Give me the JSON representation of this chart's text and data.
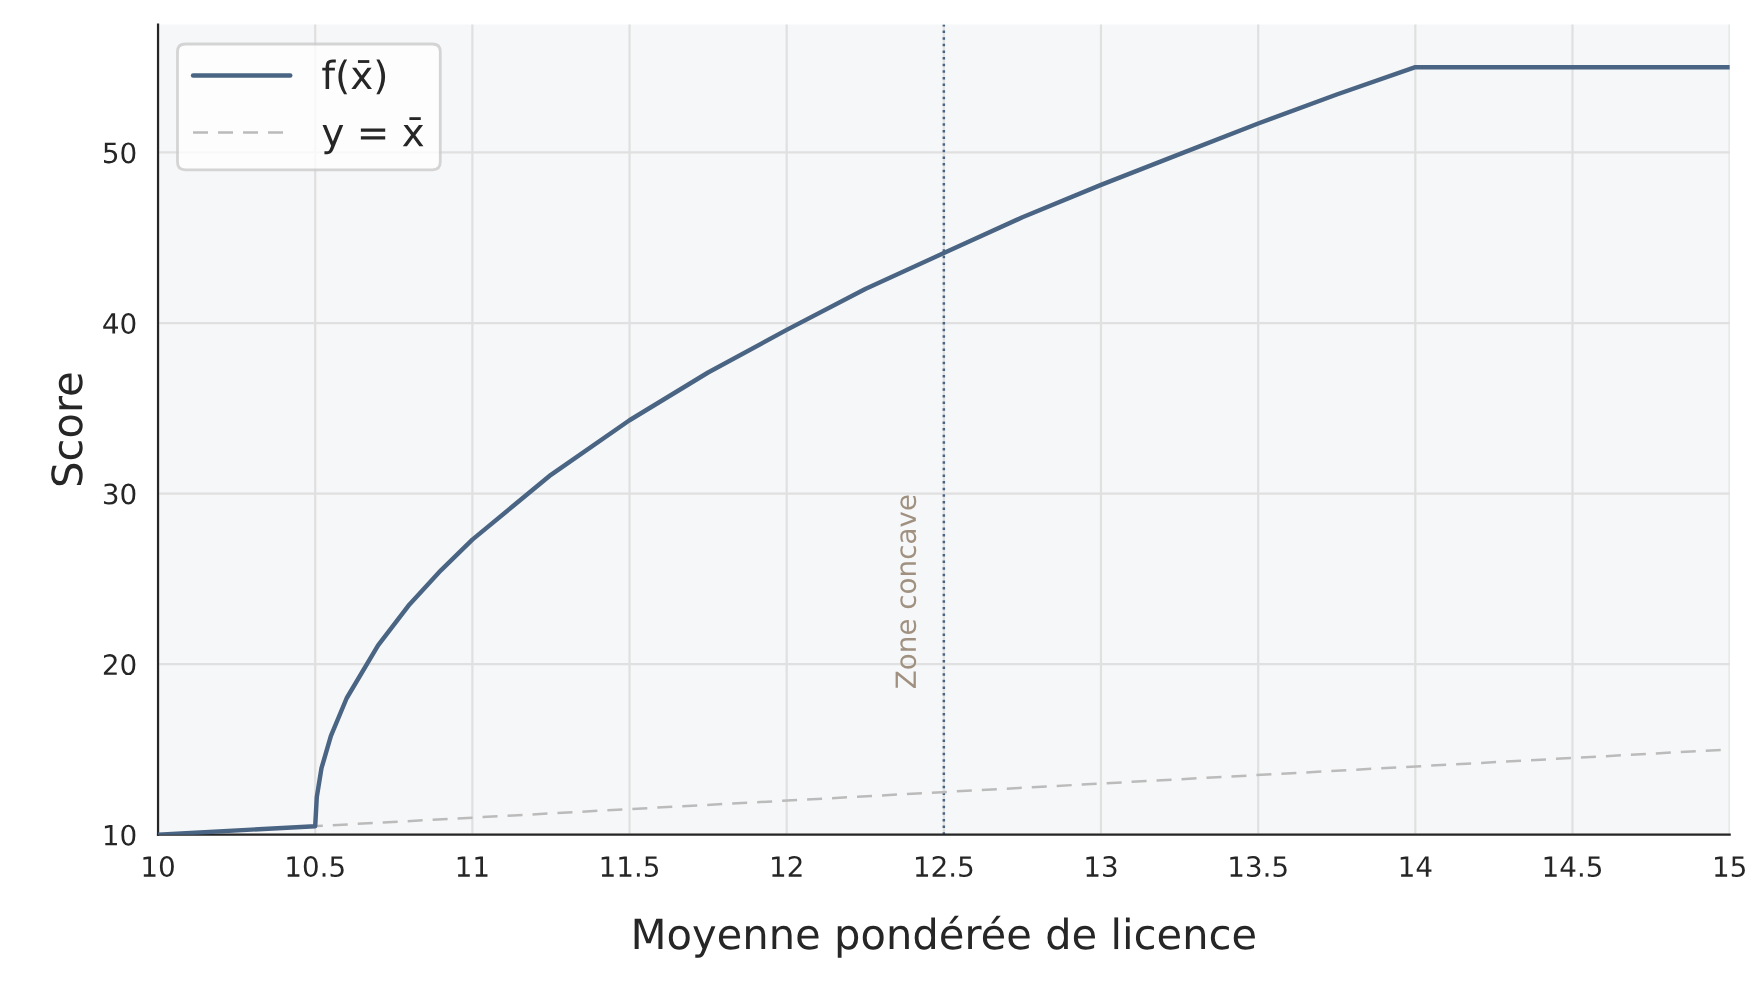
{
  "chart_data": {
    "type": "line",
    "xlabel": "Moyenne pondérée de licence",
    "ylabel": "Score",
    "xlim": [
      10,
      15
    ],
    "ylim": [
      10,
      57.5
    ],
    "xticks": [
      10,
      10.5,
      11,
      11.5,
      12,
      12.5,
      13,
      13.5,
      14,
      14.5,
      15
    ],
    "yticks": [
      10,
      20,
      30,
      40,
      50
    ],
    "grid": true,
    "legend": "top left",
    "series": [
      {
        "name": "f(x̄)",
        "color": "#4a6484",
        "line_style": "solid",
        "x": [
          10,
          10.5,
          10.505,
          10.52,
          10.55,
          10.6,
          10.7,
          10.8,
          10.9,
          11,
          11.25,
          11.5,
          11.75,
          12,
          12.25,
          12.5,
          12.75,
          13,
          13.25,
          13.5,
          13.75,
          14,
          15
        ],
        "values": [
          10,
          10.5,
          12.2,
          13.9,
          15.8,
          18.0,
          21.1,
          23.5,
          25.5,
          27.3,
          31.1,
          34.3,
          37.1,
          39.6,
          42.0,
          44.1,
          46.2,
          48.1,
          49.9,
          51.7,
          53.4,
          55,
          55
        ]
      },
      {
        "name": "y = x̄",
        "color": "#bbbbbb",
        "line_style": "dashed",
        "x": [
          10,
          15
        ],
        "values": [
          10,
          15
        ]
      }
    ],
    "ref_lines": [
      {
        "axis": "x",
        "value": 12.5,
        "label": "Zone concave",
        "color": "#4a6484",
        "line_style": "dotted"
      }
    ]
  }
}
